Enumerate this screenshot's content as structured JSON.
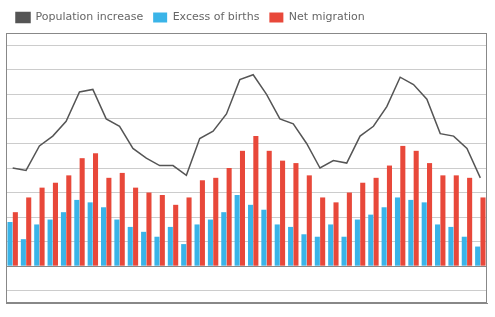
{
  "chart_data": {
    "type": "bar",
    "categories": [
      null,
      null,
      null,
      null,
      null,
      null,
      null,
      null,
      null,
      null,
      null,
      null,
      null,
      null,
      null,
      null,
      null,
      null,
      null,
      null,
      null,
      null,
      null,
      null,
      null,
      null,
      null,
      null,
      null,
      null,
      null,
      null,
      null,
      null,
      null,
      null
    ],
    "series": [
      {
        "name": "Excess of births",
        "color": "#3ab4e8",
        "values": [
          1800,
          1100,
          1700,
          1900,
          2200,
          2700,
          2600,
          2400,
          1900,
          1600,
          1400,
          1200,
          1600,
          900,
          1700,
          1900,
          2200,
          2900,
          2500,
          2300,
          1700,
          1600,
          1300,
          1200,
          1700,
          1200,
          1900,
          2100,
          2400,
          2800,
          2700,
          2600,
          1700,
          1600,
          1200,
          800
        ]
      },
      {
        "name": "Net migration",
        "color": "#e8483a",
        "values": [
          2200,
          2800,
          3200,
          3400,
          3700,
          4400,
          4600,
          3600,
          3800,
          3200,
          3000,
          2900,
          2500,
          2800,
          3500,
          3600,
          4000,
          4700,
          5300,
          4700,
          4300,
          4200,
          3700,
          2800,
          2600,
          3000,
          3400,
          3600,
          4100,
          4900,
          4700,
          4200,
          3700,
          3700,
          3600,
          2800
        ]
      },
      {
        "name": "Population increase",
        "type": "line",
        "color": "#555555",
        "values": [
          4000,
          3900,
          4900,
          5300,
          5900,
          7100,
          7200,
          6000,
          5700,
          4800,
          4400,
          4100,
          4100,
          3700,
          5200,
          5500,
          6200,
          7600,
          7800,
          7000,
          6000,
          5800,
          5000,
          4000,
          4300,
          4200,
          5300,
          5700,
          6500,
          7700,
          7400,
          6800,
          5400,
          5300,
          4800,
          3600
        ]
      }
    ],
    "ylim": [
      -1500,
      9500
    ],
    "yticks": [
      -1000,
      0,
      1000,
      2000,
      3000,
      4000,
      5000,
      6000,
      7000,
      8000,
      9000
    ],
    "grid": true,
    "legend": "upper left",
    "tick_labels": false
  }
}
